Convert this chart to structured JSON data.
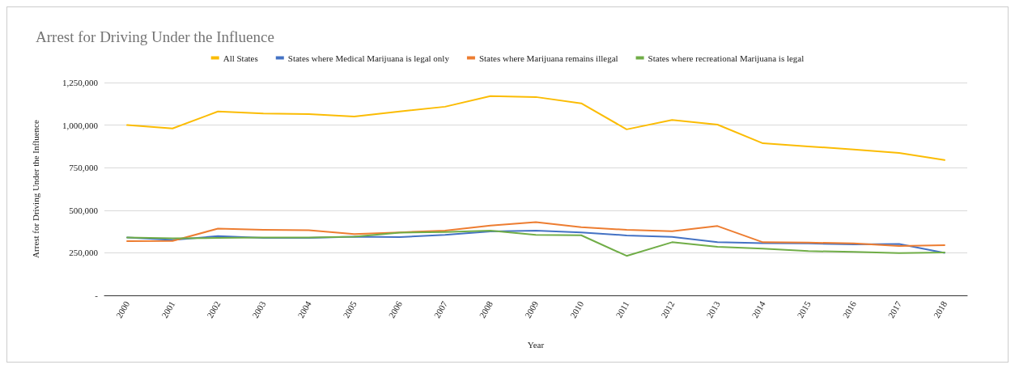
{
  "chart_data": {
    "type": "line",
    "title": "Arrest for Driving Under the Influence",
    "xlabel": "Year",
    "ylabel": "Arrest for Driving Under the Influence",
    "categories": [
      "2000",
      "2001",
      "2002",
      "2003",
      "2004",
      "2005",
      "2006",
      "2007",
      "2008",
      "2009",
      "2010",
      "2011",
      "2012",
      "2013",
      "2014",
      "2015",
      "2016",
      "2017",
      "2018"
    ],
    "series": [
      {
        "name": "All States",
        "color": "#fbbc04",
        "values": [
          1000000,
          980000,
          1080000,
          1068000,
          1065000,
          1050000,
          1080000,
          1108000,
          1170000,
          1165000,
          1128000,
          975000,
          1030000,
          1003000,
          893000,
          875000,
          857000,
          837000,
          795000
        ]
      },
      {
        "name": "States where Medical Marijuana is legal only",
        "color": "#4472c4",
        "values": [
          340000,
          325000,
          348000,
          338000,
          338000,
          345000,
          342000,
          355000,
          375000,
          380000,
          370000,
          352000,
          343000,
          312000,
          307000,
          305000,
          300000,
          302000,
          250000
        ]
      },
      {
        "name": "States where Marijuana remains illegal",
        "color": "#ed7d31",
        "values": [
          318000,
          320000,
          392000,
          385000,
          383000,
          360000,
          370000,
          380000,
          410000,
          430000,
          400000,
          385000,
          377000,
          407000,
          312000,
          310000,
          305000,
          290000,
          295000
        ]
      },
      {
        "name": "States where recreational Marijuana is legal",
        "color": "#70ad47",
        "values": [
          340000,
          335000,
          337000,
          340000,
          340000,
          345000,
          368000,
          372000,
          380000,
          355000,
          353000,
          232000,
          312000,
          285000,
          275000,
          260000,
          255000,
          248000,
          252000
        ]
      }
    ],
    "ylim": [
      0,
      1250000
    ],
    "yticks": [
      {
        "value": 0,
        "label": "-"
      },
      {
        "value": 250000,
        "label": "250,000"
      },
      {
        "value": 500000,
        "label": "500,000"
      },
      {
        "value": 750000,
        "label": "750,000"
      },
      {
        "value": 1000000,
        "label": "1,000,000"
      },
      {
        "value": 1250000,
        "label": "1,250,000"
      }
    ],
    "grid": "y",
    "legend": "top",
    "marker": "none"
  }
}
